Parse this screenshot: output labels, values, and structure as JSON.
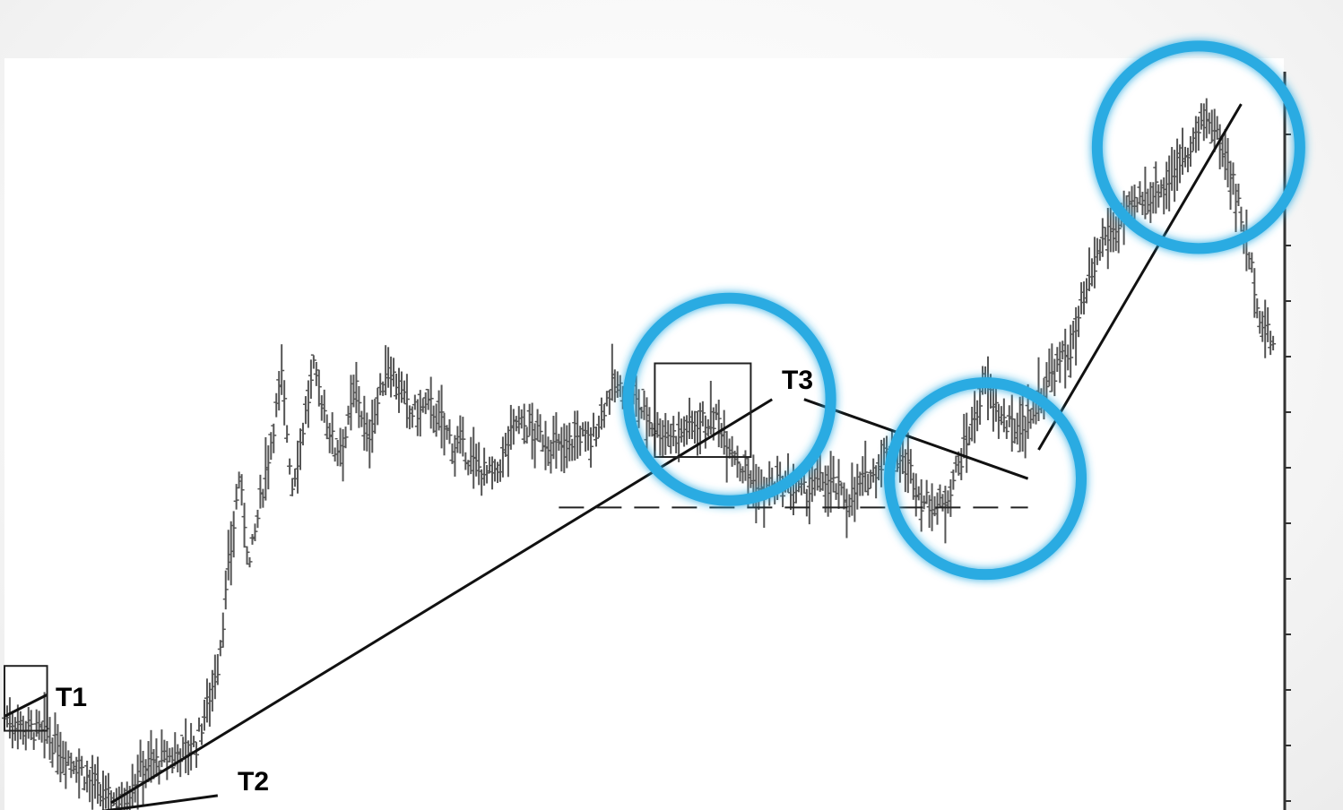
{
  "chart_data": {
    "type": "bar",
    "subtype": "ohlc-price-bars",
    "title": "",
    "xlabel": "",
    "ylabel": "",
    "x_range": [
      0,
      240
    ],
    "y_range": [
      0,
      100
    ],
    "grid": false,
    "legend": "none",
    "price_anchors": {
      "x": [
        0,
        8,
        14,
        18,
        22,
        26,
        30,
        36,
        40,
        44,
        46,
        52,
        54,
        58,
        62,
        64,
        66,
        68,
        72,
        76,
        80,
        84,
        86,
        88,
        92,
        96,
        100,
        104,
        108,
        110,
        114,
        118,
        122,
        126,
        130,
        134,
        138,
        142,
        146,
        150,
        154,
        158,
        162,
        166,
        170,
        172,
        176,
        180,
        184,
        188,
        192,
        196,
        200,
        204,
        206,
        210,
        214,
        218,
        222,
        226,
        230,
        234,
        236,
        238
      ],
      "y": [
        13,
        10,
        6,
        2,
        1,
        6,
        7,
        9,
        20,
        46,
        34,
        60,
        45,
        61,
        50,
        52,
        59,
        51,
        62,
        55,
        56,
        51,
        50,
        48,
        46,
        54,
        52,
        50,
        52,
        51,
        59,
        57,
        53,
        52,
        54,
        54,
        48,
        44,
        45,
        44,
        46,
        43,
        46,
        50,
        47,
        43,
        42,
        50,
        59,
        53,
        54,
        60,
        64,
        74,
        79,
        82,
        85,
        87,
        92,
        96,
        89,
        75,
        67,
        65
      ]
    },
    "annotations": {
      "labels": [
        "T1",
        "T2",
        "T3"
      ],
      "trendlines": [
        {
          "from": [
            0,
            -2
          ],
          "to": [
            40,
            2
          ]
        },
        {
          "from": [
            20,
            1
          ],
          "to": [
            144,
            57
          ]
        },
        {
          "from": [
            150,
            57
          ],
          "to": [
            192,
            46
          ]
        },
        {
          "from": [
            194,
            50
          ],
          "to": [
            232,
            98
          ]
        },
        {
          "from": [
            0,
            13
          ],
          "to": [
            8,
            16
          ]
        }
      ],
      "support_line": {
        "y": 42,
        "x_from": 104,
        "x_to": 192,
        "style": "dashed"
      },
      "boxes": [
        {
          "x": [
            0,
            8
          ],
          "y": [
            11,
            20
          ]
        },
        {
          "x": [
            122,
            140
          ],
          "y": [
            49,
            62
          ]
        }
      ],
      "highlight_circles_at": [
        {
          "x": 136,
          "y": 57
        },
        {
          "x": 184,
          "y": 46
        },
        {
          "x": 224,
          "y": 92
        }
      ],
      "highlight_color": "#29abe2"
    }
  }
}
